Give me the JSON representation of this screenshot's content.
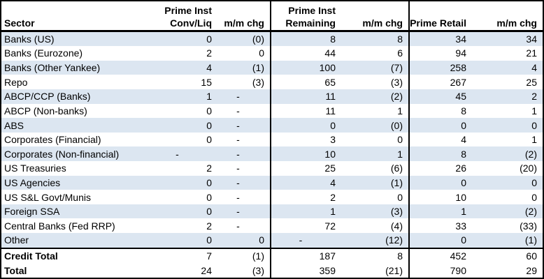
{
  "colors": {
    "row_shade": "#dce6f1",
    "border": "#000000",
    "text": "#000000",
    "background": "#ffffff"
  },
  "table": {
    "columns": [
      {
        "id": "sector",
        "line1": "",
        "line2": "Sector"
      },
      {
        "id": "prime-inst-conv-liq",
        "line1": "Prime Inst",
        "line2": "Conv/Liq"
      },
      {
        "id": "mm-chg-1",
        "line1": "",
        "line2": "m/m chg"
      },
      {
        "id": "prime-inst-remaining",
        "line1": "Prime Inst",
        "line2": "Remaining"
      },
      {
        "id": "mm-chg-2",
        "line1": "",
        "line2": "m/m chg"
      },
      {
        "id": "prime-retail",
        "line1": "",
        "line2": "Prime Retail"
      },
      {
        "id": "mm-chg-3",
        "line1": "",
        "line2": "m/m chg"
      }
    ],
    "rows": [
      {
        "sector": "Banks (US)",
        "values": [
          "0",
          "(0)",
          "8",
          "8",
          "34",
          "34"
        ],
        "shaded": true,
        "is_total": false
      },
      {
        "sector": "Banks (Eurozone)",
        "values": [
          "2",
          "0",
          "44",
          "6",
          "94",
          "21"
        ],
        "shaded": false,
        "is_total": false
      },
      {
        "sector": "Banks (Other Yankee)",
        "values": [
          "4",
          "(1)",
          "100",
          "(7)",
          "258",
          "4"
        ],
        "shaded": true,
        "is_total": false
      },
      {
        "sector": "Repo",
        "values": [
          "15",
          "(3)",
          "65",
          "(3)",
          "267",
          "25"
        ],
        "shaded": false,
        "is_total": false
      },
      {
        "sector": "ABCP/CCP (Banks)",
        "values": [
          "1",
          "-",
          "11",
          "(2)",
          "45",
          "2"
        ],
        "shaded": true,
        "is_total": false
      },
      {
        "sector": "ABCP (Non-banks)",
        "values": [
          "0",
          "-",
          "11",
          "1",
          "8",
          "1"
        ],
        "shaded": false,
        "is_total": false
      },
      {
        "sector": "ABS",
        "values": [
          "0",
          "-",
          "0",
          "(0)",
          "0",
          "0"
        ],
        "shaded": true,
        "is_total": false
      },
      {
        "sector": "Corporates (Financial)",
        "values": [
          "0",
          "-",
          "3",
          "0",
          "4",
          "1"
        ],
        "shaded": false,
        "is_total": false
      },
      {
        "sector": "Corporates (Non-financial)",
        "values": [
          "-",
          "-",
          "10",
          "1",
          "8",
          "(2)"
        ],
        "shaded": true,
        "is_total": false
      },
      {
        "sector": "US Treasuries",
        "values": [
          "2",
          "-",
          "25",
          "(6)",
          "26",
          "(20)"
        ],
        "shaded": false,
        "is_total": false
      },
      {
        "sector": "US Agencies",
        "values": [
          "0",
          "-",
          "4",
          "(1)",
          "0",
          "0"
        ],
        "shaded": true,
        "is_total": false
      },
      {
        "sector": "US S&L Govt/Munis",
        "values": [
          "0",
          "-",
          "2",
          "0",
          "10",
          "0"
        ],
        "shaded": false,
        "is_total": false
      },
      {
        "sector": "Foreign SSA",
        "values": [
          "0",
          "-",
          "1",
          "(3)",
          "1",
          "(2)"
        ],
        "shaded": true,
        "is_total": false
      },
      {
        "sector": "Central Banks (Fed RRP)",
        "values": [
          "2",
          "-",
          "72",
          "(4)",
          "33",
          "(33)"
        ],
        "shaded": false,
        "is_total": false
      },
      {
        "sector": "Other",
        "values": [
          "0",
          "0",
          "-",
          "(12)",
          "0",
          "(1)"
        ],
        "shaded": true,
        "is_total": false
      },
      {
        "sector": "Credit Total",
        "values": [
          "7",
          "(1)",
          "187",
          "8",
          "452",
          "60"
        ],
        "shaded": false,
        "is_total": true
      },
      {
        "sector": "Total",
        "values": [
          "24",
          "(3)",
          "359",
          "(21)",
          "790",
          "29"
        ],
        "shaded": false,
        "is_total": true
      }
    ]
  }
}
